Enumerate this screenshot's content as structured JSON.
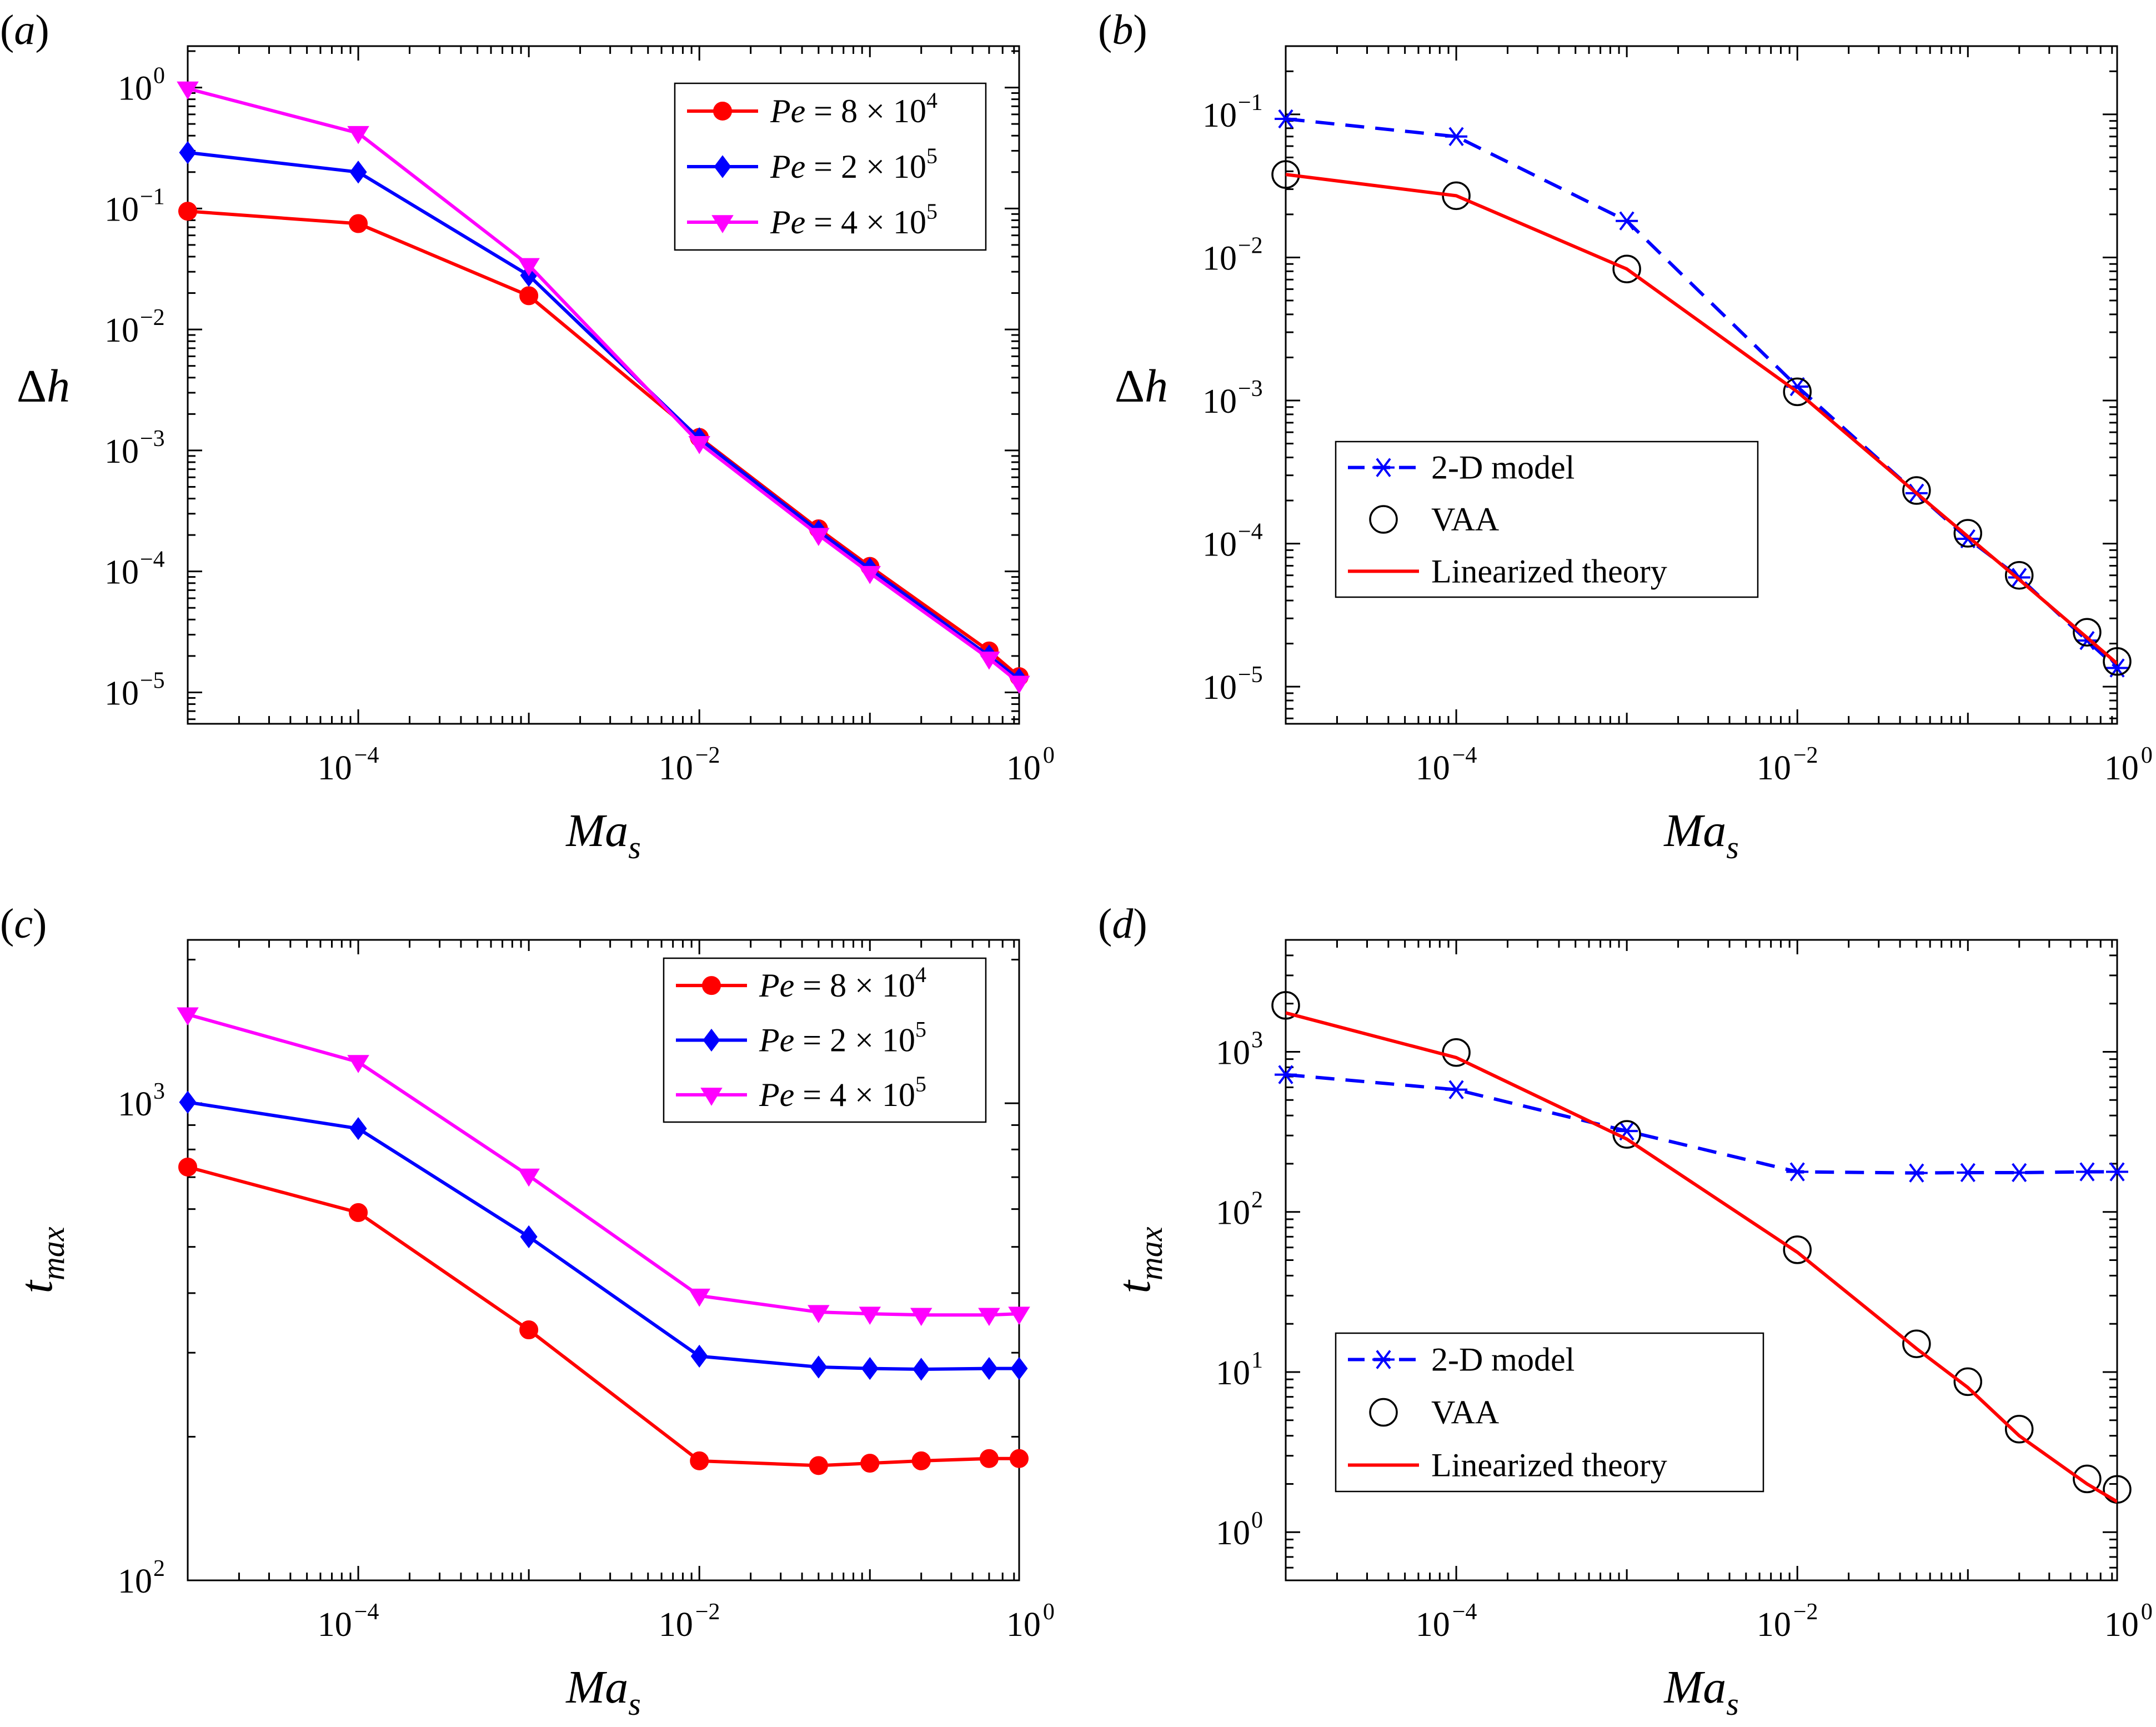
{
  "colors": {
    "red": "#ff0000",
    "blue": "#0000ff",
    "magenta": "#ff00ff",
    "black": "#000000"
  },
  "chart_data": [
    {
      "id": "a",
      "panel_label": "(a)",
      "type": "line",
      "xscale": "log",
      "yscale": "log",
      "xlim": [
        1e-05,
        0.75
      ],
      "ylim": [
        5.5e-06,
        2.2
      ],
      "xlabel": "Ma_s",
      "ylabel": "Δh",
      "xticks": [
        {
          "label": "10",
          "exp": "−4",
          "value": 0.0001
        },
        {
          "label": "10",
          "exp": "−2",
          "value": 0.01
        },
        {
          "label": "10",
          "exp": "0",
          "value": 1
        }
      ],
      "yticks": [
        {
          "label": "10",
          "exp": "0",
          "value": 1
        },
        {
          "label": "10",
          "exp": "−1",
          "value": 0.1
        },
        {
          "label": "10",
          "exp": "−2",
          "value": 0.01
        },
        {
          "label": "10",
          "exp": "−3",
          "value": 0.001
        },
        {
          "label": "10",
          "exp": "−4",
          "value": 0.0001
        },
        {
          "label": "10",
          "exp": "−5",
          "value": 1e-05
        }
      ],
      "legend_position": "top-right",
      "series": [
        {
          "name": "Pe = 8 × 10",
          "exp": "4",
          "color": "#ff0000",
          "marker": "circle",
          "line": "solid",
          "x": [
            1e-05,
            0.0001,
            0.001,
            0.01,
            0.05,
            0.1,
            0.5,
            0.75
          ],
          "y": [
            0.095,
            0.075,
            0.019,
            0.00128,
            0.000225,
            0.00011,
            2.2e-05,
            1.35e-05
          ]
        },
        {
          "name": "Pe = 2 × 10",
          "exp": "5",
          "color": "#0000ff",
          "marker": "diamond",
          "line": "solid",
          "x": [
            1e-05,
            0.0001,
            0.001,
            0.01,
            0.05,
            0.1,
            0.5,
            0.75
          ],
          "y": [
            0.29,
            0.2,
            0.028,
            0.00125,
            0.000215,
            0.000105,
            2e-05,
            1.28e-05
          ]
        },
        {
          "name": "Pe = 4 × 10",
          "exp": "5",
          "color": "#ff00ff",
          "marker": "triangle-down",
          "line": "solid",
          "x": [
            1e-05,
            0.0001,
            0.001,
            0.01,
            0.05,
            0.1,
            0.5,
            0.75
          ],
          "y": [
            0.98,
            0.42,
            0.034,
            0.00115,
            0.0002,
            9.7e-05,
            1.9e-05,
            1.2e-05
          ]
        }
      ]
    },
    {
      "id": "b",
      "panel_label": "(b)",
      "type": "line",
      "xscale": "log",
      "yscale": "log",
      "xlim": [
        1e-05,
        0.75
      ],
      "ylim": [
        5.5e-06,
        0.3
      ],
      "xlabel": "Ma_s",
      "ylabel": "Δh",
      "xticks": [
        {
          "label": "10",
          "exp": "−4",
          "value": 0.0001
        },
        {
          "label": "10",
          "exp": "−2",
          "value": 0.01
        },
        {
          "label": "10",
          "exp": "0",
          "value": 1
        }
      ],
      "yticks": [
        {
          "label": "10",
          "exp": "−1",
          "value": 0.1
        },
        {
          "label": "10",
          "exp": "−2",
          "value": 0.01
        },
        {
          "label": "10",
          "exp": "−3",
          "value": 0.001
        },
        {
          "label": "10",
          "exp": "−4",
          "value": 0.0001
        },
        {
          "label": "10",
          "exp": "−5",
          "value": 1e-05
        }
      ],
      "legend_position": "center-left",
      "series": [
        {
          "name": "2-D model",
          "color": "#0000ff",
          "marker": "asterisk",
          "line": "dashed",
          "x": [
            1e-05,
            0.0001,
            0.001,
            0.01,
            0.05,
            0.1,
            0.2,
            0.5,
            0.75
          ],
          "y": [
            0.093,
            0.07,
            0.018,
            0.00125,
            0.000225,
            0.000108,
            5.8e-05,
            2.1e-05,
            1.35e-05
          ]
        },
        {
          "name": "VAA",
          "color": "#000000",
          "marker": "open-circle",
          "line": "none",
          "x": [
            1e-05,
            0.0001,
            0.001,
            0.01,
            0.05,
            0.1,
            0.2,
            0.5,
            0.75
          ],
          "y": [
            0.038,
            0.027,
            0.0083,
            0.00115,
            0.000235,
            0.000118,
            6e-05,
            2.4e-05,
            1.5e-05
          ]
        },
        {
          "name": "Linearized theory",
          "color": "#ff0000",
          "marker": "none",
          "line": "solid",
          "x": [
            1e-05,
            0.0001,
            0.001,
            0.01,
            0.05,
            0.1,
            0.2,
            0.5,
            0.75
          ],
          "y": [
            0.038,
            0.027,
            0.0083,
            0.00115,
            0.000225,
            0.000112,
            5.6e-05,
            2.2e-05,
            1.45e-05
          ]
        }
      ]
    },
    {
      "id": "c",
      "panel_label": "(c)",
      "type": "line",
      "xscale": "log",
      "yscale": "log",
      "xlim": [
        1e-05,
        0.75
      ],
      "ylim": [
        100,
        2200
      ],
      "xlabel": "Ma_s",
      "ylabel": "t_max",
      "xticks": [
        {
          "label": "10",
          "exp": "−4",
          "value": 0.0001
        },
        {
          "label": "10",
          "exp": "−2",
          "value": 0.01
        },
        {
          "label": "10",
          "exp": "0",
          "value": 1
        }
      ],
      "yticks": [
        {
          "label": "10",
          "exp": "3",
          "value": 1000
        },
        {
          "label": "10",
          "exp": "2",
          "value": 100
        }
      ],
      "legend_position": "top-right",
      "series": [
        {
          "name": "Pe = 8 × 10",
          "exp": "4",
          "color": "#ff0000",
          "marker": "circle",
          "line": "solid",
          "x": [
            1e-05,
            0.0001,
            0.001,
            0.01,
            0.05,
            0.1,
            0.2,
            0.5,
            0.75
          ],
          "y": [
            735,
            590,
            335,
            178,
            174,
            176,
            178,
            180,
            180
          ]
        },
        {
          "name": "Pe = 2 × 10",
          "exp": "5",
          "color": "#0000ff",
          "marker": "diamond",
          "line": "solid",
          "x": [
            1e-05,
            0.0001,
            0.001,
            0.01,
            0.05,
            0.1,
            0.2,
            0.5,
            0.75
          ],
          "y": [
            1005,
            885,
            525,
            295,
            280,
            278,
            277,
            278,
            278
          ]
        },
        {
          "name": "Pe = 4 × 10",
          "exp": "5",
          "color": "#ff00ff",
          "marker": "triangle-down",
          "line": "solid",
          "x": [
            1e-05,
            0.0001,
            0.001,
            0.01,
            0.05,
            0.1,
            0.2,
            0.5,
            0.75
          ],
          "y": [
            1535,
            1220,
            705,
            395,
            365,
            362,
            360,
            360,
            362
          ]
        }
      ]
    },
    {
      "id": "d",
      "panel_label": "(d)",
      "type": "line",
      "xscale": "log",
      "yscale": "log",
      "xlim": [
        1e-05,
        0.75
      ],
      "ylim": [
        0.5,
        5000
      ],
      "xlabel": "Ma_s",
      "ylabel": "t_max",
      "xticks": [
        {
          "label": "10",
          "exp": "−4",
          "value": 0.0001
        },
        {
          "label": "10",
          "exp": "−2",
          "value": 0.01
        },
        {
          "label": "10",
          "exp": "0",
          "value": 1
        }
      ],
      "yticks": [
        {
          "label": "10",
          "exp": "3",
          "value": 1000
        },
        {
          "label": "10",
          "exp": "2",
          "value": 100
        },
        {
          "label": "10",
          "exp": "1",
          "value": 10
        },
        {
          "label": "10",
          "exp": "0",
          "value": 1
        }
      ],
      "legend_position": "bottom-left",
      "series": [
        {
          "name": "2-D model",
          "color": "#0000ff",
          "marker": "asterisk",
          "line": "dashed",
          "x": [
            1e-05,
            0.0001,
            0.001,
            0.01,
            0.05,
            0.1,
            0.2,
            0.5,
            0.75
          ],
          "y": [
            720,
            580,
            320,
            178,
            175,
            176,
            176,
            178,
            178
          ]
        },
        {
          "name": "VAA",
          "color": "#000000",
          "marker": "open-circle",
          "line": "none",
          "x": [
            1e-05,
            0.0001,
            0.001,
            0.01,
            0.05,
            0.1,
            0.2,
            0.5,
            0.75
          ],
          "y": [
            1950,
            990,
            305,
            58,
            15,
            8.7,
            4.4,
            2.15,
            1.85
          ]
        },
        {
          "name": "Linearized theory",
          "color": "#ff0000",
          "marker": "none",
          "line": "solid",
          "x": [
            1e-05,
            0.0001,
            0.001,
            0.01,
            0.05,
            0.1,
            0.2,
            0.5,
            0.75
          ],
          "y": [
            1750,
            920,
            285,
            56,
            14,
            8,
            4,
            2,
            1.55
          ]
        }
      ]
    }
  ]
}
